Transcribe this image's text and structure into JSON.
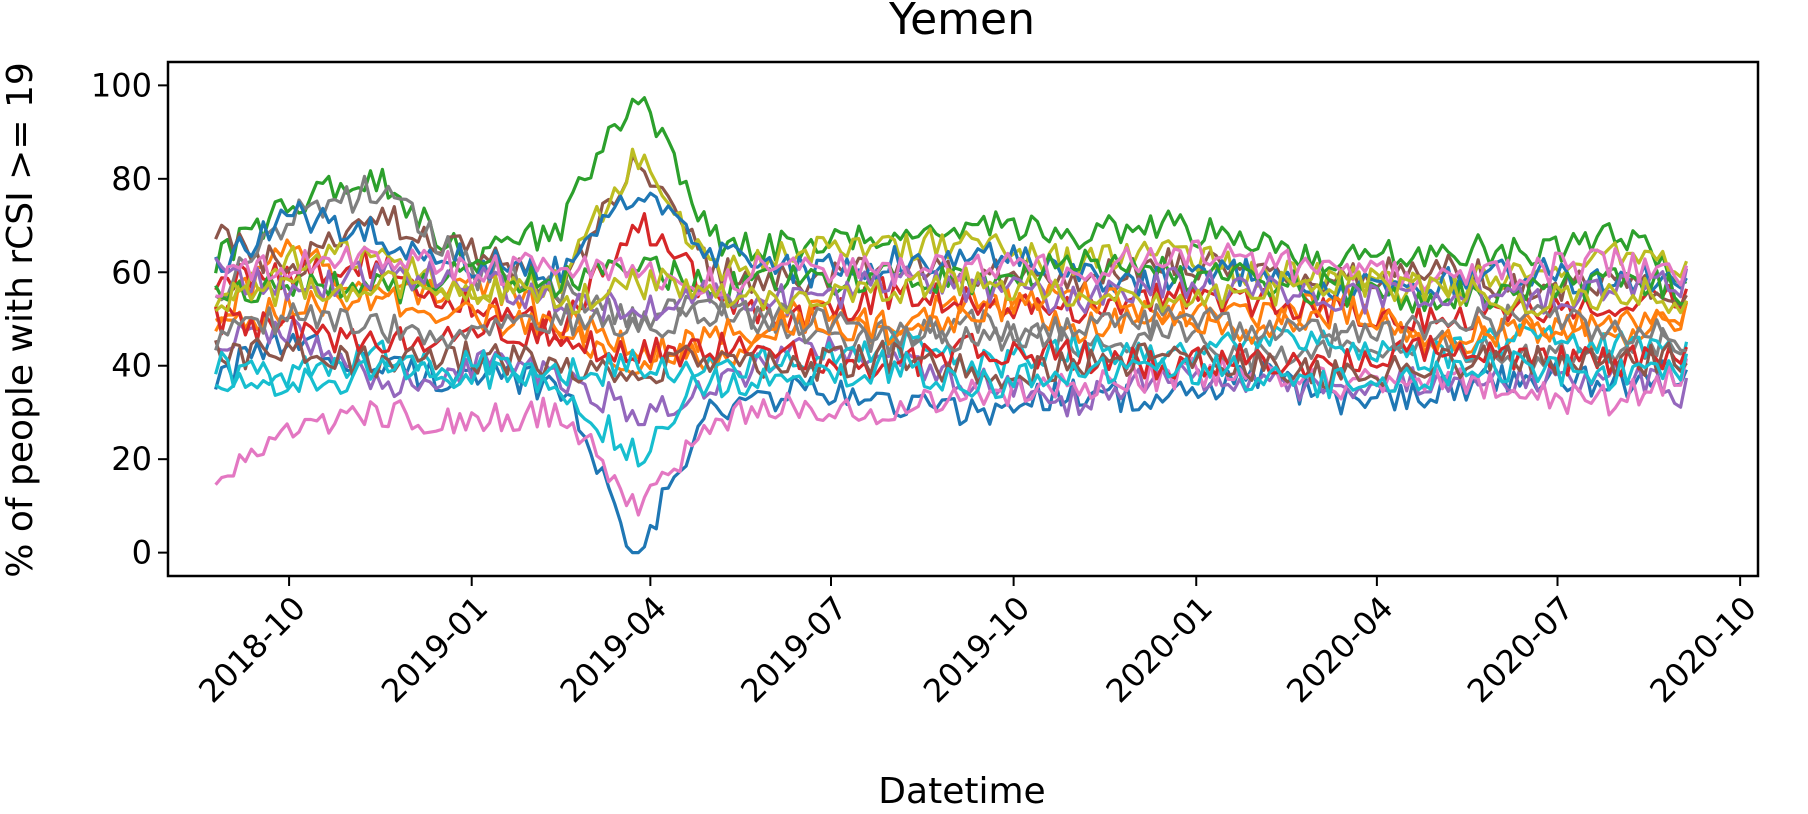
{
  "chart_data": {
    "type": "line",
    "title": "Yemen",
    "xlabel": "Datetime",
    "ylabel": "% of people with rCSI >= 19",
    "x_range": [
      "2018-08-01",
      "2020-10-10"
    ],
    "x_ticks": [
      "2018-10",
      "2019-01",
      "2019-04",
      "2019-07",
      "2019-10",
      "2020-01",
      "2020-04",
      "2020-07",
      "2020-10"
    ],
    "ylim": [
      -5,
      105
    ],
    "y_ticks": [
      0,
      20,
      40,
      60,
      80,
      100
    ],
    "grid": false,
    "legend": "none",
    "colors": [
      "#1f77b4",
      "#ff7f0e",
      "#2ca02c",
      "#d62728",
      "#9467bd",
      "#8c564b",
      "#e377c2",
      "#7f7f7f",
      "#bcbd22",
      "#17becf"
    ],
    "series": [
      {
        "x": [
          "2018-08-25",
          "2018-10-01",
          "2018-11-15",
          "2019-01-01",
          "2019-02-15",
          "2019-03-25",
          "2019-05-01",
          "2019-06-15",
          "2019-08-01",
          "2019-09-15",
          "2019-11-01",
          "2019-12-15",
          "2020-02-01",
          "2020-03-15",
          "2020-05-01",
          "2020-06-15",
          "2020-08-01",
          "2020-09-05"
        ],
        "values": [
          38,
          45,
          40,
          37,
          36,
          0,
          30,
          35,
          32,
          30,
          35,
          32,
          38,
          32,
          35,
          38,
          36,
          40
        ]
      },
      {
        "x": [
          "2018-08-25",
          "2018-10-01",
          "2018-11-15",
          "2019-01-01",
          "2019-02-15",
          "2019-03-25",
          "2019-05-01",
          "2019-06-15",
          "2019-08-01",
          "2019-09-15",
          "2019-11-01",
          "2019-12-15",
          "2020-02-01",
          "2020-03-15",
          "2020-05-01",
          "2020-06-15",
          "2020-08-01",
          "2020-09-05"
        ],
        "values": [
          50,
          65,
          55,
          58,
          50,
          45,
          40,
          52,
          48,
          56,
          48,
          52,
          50,
          55,
          45,
          48,
          46,
          52
        ]
      },
      {
        "x": [
          "2018-08-25",
          "2018-10-01",
          "2018-11-15",
          "2019-01-01",
          "2019-02-15",
          "2019-03-25",
          "2019-05-01",
          "2019-06-15",
          "2019-08-01",
          "2019-09-15",
          "2019-11-01",
          "2019-12-15",
          "2020-02-01",
          "2020-03-15",
          "2020-05-01",
          "2020-06-15",
          "2020-08-01",
          "2020-09-05"
        ],
        "values": [
          62,
          75,
          80,
          62,
          70,
          100,
          67,
          65,
          68,
          70,
          68,
          70,
          66,
          62,
          65,
          64,
          68,
          60
        ]
      },
      {
        "x": [
          "2018-08-25",
          "2018-10-01",
          "2018-11-15",
          "2019-01-01",
          "2019-02-15",
          "2019-03-25",
          "2019-05-01",
          "2019-06-15",
          "2019-08-01",
          "2019-09-15",
          "2019-11-01",
          "2019-12-15",
          "2020-02-01",
          "2020-03-15",
          "2020-05-01",
          "2020-06-15",
          "2020-08-01",
          "2020-09-05"
        ],
        "values": [
          58,
          60,
          62,
          52,
          48,
          72,
          55,
          50,
          56,
          54,
          52,
          55,
          54,
          52,
          50,
          52,
          54,
          56
        ]
      },
      {
        "x": [
          "2018-08-25",
          "2018-10-01",
          "2018-11-15",
          "2019-01-01",
          "2019-02-15",
          "2019-03-25",
          "2019-05-01",
          "2019-06-15",
          "2019-08-01",
          "2019-09-15",
          "2019-11-01",
          "2019-12-15",
          "2020-02-01",
          "2020-03-15",
          "2020-05-01",
          "2020-06-15",
          "2020-08-01",
          "2020-09-05"
        ],
        "values": [
          45,
          48,
          35,
          40,
          38,
          30,
          35,
          45,
          40,
          36,
          32,
          38,
          36,
          34,
          38,
          36,
          38,
          34
        ]
      },
      {
        "x": [
          "2018-08-25",
          "2018-10-01",
          "2018-11-15",
          "2019-01-01",
          "2019-02-15",
          "2019-03-25",
          "2019-05-01",
          "2019-06-15",
          "2019-08-01",
          "2019-09-15",
          "2019-11-01",
          "2019-12-15",
          "2020-02-01",
          "2020-03-15",
          "2020-05-01",
          "2020-06-15",
          "2020-08-01",
          "2020-09-05"
        ],
        "values": [
          68,
          60,
          72,
          64,
          56,
          86,
          60,
          58,
          62,
          60,
          58,
          62,
          60,
          58,
          62,
          56,
          58,
          56
        ]
      },
      {
        "x": [
          "2018-08-25",
          "2018-10-01",
          "2018-11-15",
          "2019-01-01",
          "2019-02-15",
          "2019-03-25",
          "2019-05-01",
          "2019-06-15",
          "2019-08-01",
          "2019-09-15",
          "2019-11-01",
          "2019-12-15",
          "2020-02-01",
          "2020-03-15",
          "2020-05-01",
          "2020-06-15",
          "2020-08-01",
          "2020-09-05"
        ],
        "values": [
          15,
          25,
          30,
          28,
          30,
          10,
          28,
          32,
          30,
          34,
          36,
          38,
          40,
          36,
          38,
          34,
          32,
          40
        ]
      },
      {
        "x": [
          "2018-08-25",
          "2018-10-01",
          "2018-11-15",
          "2019-01-01",
          "2019-02-15",
          "2019-03-25",
          "2019-05-01",
          "2019-06-15",
          "2019-08-01",
          "2019-09-15",
          "2019-11-01",
          "2019-12-15",
          "2020-02-01",
          "2020-03-15",
          "2020-05-01",
          "2020-06-15",
          "2020-08-01",
          "2020-09-05"
        ],
        "values": [
          55,
          72,
          78,
          60,
          56,
          50,
          52,
          48,
          46,
          50,
          44,
          48,
          42,
          46,
          44,
          42,
          44,
          46
        ]
      },
      {
        "x": [
          "2018-08-25",
          "2018-10-01",
          "2018-11-15",
          "2019-01-01",
          "2019-02-15",
          "2019-03-25",
          "2019-05-01",
          "2019-06-15",
          "2019-08-01",
          "2019-09-15",
          "2019-11-01",
          "2019-12-15",
          "2020-02-01",
          "2020-03-15",
          "2020-05-01",
          "2020-06-15",
          "2020-08-01",
          "2020-09-05"
        ],
        "values": [
          52,
          62,
          64,
          55,
          58,
          85,
          60,
          64,
          66,
          66,
          62,
          64,
          60,
          58,
          56,
          60,
          64,
          62
        ]
      },
      {
        "x": [
          "2018-08-25",
          "2018-10-01",
          "2018-11-15",
          "2019-01-01",
          "2019-02-15",
          "2019-03-25",
          "2019-05-01",
          "2019-06-15",
          "2019-08-01",
          "2019-09-15",
          "2019-11-01",
          "2019-12-15",
          "2020-02-01",
          "2020-03-15",
          "2020-05-01",
          "2020-06-15",
          "2020-08-01",
          "2020-09-05"
        ],
        "values": [
          35,
          38,
          42,
          38,
          36,
          20,
          40,
          42,
          45,
          40,
          44,
          42,
          46,
          44,
          42,
          46,
          44,
          42
        ]
      },
      {
        "x": [
          "2018-08-25",
          "2018-10-01",
          "2018-11-15",
          "2019-01-01",
          "2019-02-15",
          "2019-03-25",
          "2019-05-01",
          "2019-06-15",
          "2019-08-01",
          "2019-09-15",
          "2019-11-01",
          "2019-12-15",
          "2020-02-01",
          "2020-03-15",
          "2020-05-01",
          "2020-06-15",
          "2020-08-01",
          "2020-09-05"
        ],
        "values": [
          62,
          72,
          68,
          62,
          60,
          78,
          64,
          60,
          62,
          64,
          60,
          58,
          60,
          56,
          58,
          60,
          58,
          60
        ]
      },
      {
        "x": [
          "2018-08-25",
          "2018-10-01",
          "2018-11-15",
          "2019-01-01",
          "2019-02-15",
          "2019-03-25",
          "2019-05-01",
          "2019-06-15",
          "2019-08-01",
          "2019-09-15",
          "2019-11-01",
          "2019-12-15",
          "2020-02-01",
          "2020-03-15",
          "2020-05-01",
          "2020-06-15",
          "2020-08-01",
          "2020-09-05"
        ],
        "values": [
          48,
          52,
          54,
          50,
          48,
          40,
          46,
          50,
          48,
          52,
          56,
          50,
          48,
          52,
          46,
          48,
          50,
          52
        ]
      },
      {
        "x": [
          "2018-08-25",
          "2018-10-01",
          "2018-11-15",
          "2019-01-01",
          "2019-02-15",
          "2019-03-25",
          "2019-05-01",
          "2019-06-15",
          "2019-08-01",
          "2019-09-15",
          "2019-11-01",
          "2019-12-15",
          "2020-02-01",
          "2020-03-15",
          "2020-05-01",
          "2020-06-15",
          "2020-08-01",
          "2020-09-05"
        ],
        "values": [
          55,
          58,
          56,
          60,
          58,
          62,
          56,
          58,
          60,
          58,
          62,
          60,
          58,
          56,
          54,
          56,
          58,
          56
        ]
      },
      {
        "x": [
          "2018-08-25",
          "2018-10-01",
          "2018-11-15",
          "2019-01-01",
          "2019-02-15",
          "2019-03-25",
          "2019-05-01",
          "2019-06-15",
          "2019-08-01",
          "2019-09-15",
          "2019-11-01",
          "2019-12-15",
          "2020-02-01",
          "2020-03-15",
          "2020-05-01",
          "2020-06-15",
          "2020-08-01",
          "2020-09-05"
        ],
        "values": [
          50,
          48,
          45,
          48,
          46,
          42,
          44,
          42,
          40,
          44,
          42,
          40,
          42,
          40,
          44,
          42,
          40,
          44
        ]
      },
      {
        "x": [
          "2018-08-25",
          "2018-10-01",
          "2018-11-15",
          "2019-01-01",
          "2019-02-15",
          "2019-03-25",
          "2019-05-01",
          "2019-06-15",
          "2019-08-01",
          "2019-09-15",
          "2019-11-01",
          "2019-12-15",
          "2020-02-01",
          "2020-03-15",
          "2020-05-01",
          "2020-06-15",
          "2020-08-01",
          "2020-09-05"
        ],
        "values": [
          60,
          56,
          60,
          58,
          54,
          52,
          56,
          54,
          58,
          56,
          54,
          58,
          56,
          54,
          56,
          54,
          56,
          58
        ]
      },
      {
        "x": [
          "2018-08-25",
          "2018-10-01",
          "2018-11-15",
          "2019-01-01",
          "2019-02-15",
          "2019-03-25",
          "2019-05-01",
          "2019-06-15",
          "2019-08-01",
          "2019-09-15",
          "2019-11-01",
          "2019-12-15",
          "2020-02-01",
          "2020-03-15",
          "2020-05-01",
          "2020-06-15",
          "2020-08-01",
          "2020-09-05"
        ],
        "values": [
          42,
          44,
          40,
          42,
          40,
          38,
          42,
          40,
          42,
          38,
          40,
          42,
          40,
          38,
          40,
          42,
          40,
          42
        ]
      },
      {
        "x": [
          "2018-08-25",
          "2018-10-01",
          "2018-11-15",
          "2019-01-01",
          "2019-02-15",
          "2019-03-25",
          "2019-05-01",
          "2019-06-15",
          "2019-08-01",
          "2019-09-15",
          "2019-11-01",
          "2019-12-15",
          "2020-02-01",
          "2020-03-15",
          "2020-05-01",
          "2020-06-15",
          "2020-08-01",
          "2020-09-05"
        ],
        "values": [
          58,
          62,
          64,
          60,
          62,
          60,
          58,
          62,
          60,
          62,
          60,
          64,
          62,
          60,
          58,
          60,
          62,
          60
        ]
      },
      {
        "x": [
          "2018-08-25",
          "2018-10-01",
          "2018-11-15",
          "2019-01-01",
          "2019-02-15",
          "2019-03-25",
          "2019-05-01",
          "2019-06-15",
          "2019-08-01",
          "2019-09-15",
          "2019-11-01",
          "2019-12-15",
          "2020-02-01",
          "2020-03-15",
          "2020-05-01",
          "2020-06-15",
          "2020-08-01",
          "2020-09-05"
        ],
        "values": [
          46,
          50,
          48,
          46,
          50,
          48,
          52,
          50,
          48,
          46,
          48,
          50,
          48,
          46,
          48,
          50,
          48,
          46
        ]
      },
      {
        "x": [
          "2018-08-25",
          "2018-10-01",
          "2018-11-15",
          "2019-01-01",
          "2019-02-15",
          "2019-03-25",
          "2019-05-01",
          "2019-06-15",
          "2019-08-01",
          "2019-09-15",
          "2019-11-01",
          "2019-12-15",
          "2020-02-01",
          "2020-03-15",
          "2020-05-01",
          "2020-06-15",
          "2020-08-01",
          "2020-09-05"
        ],
        "values": [
          54,
          56,
          58,
          56,
          54,
          58,
          56,
          54,
          56,
          58,
          56,
          54,
          56,
          58,
          56,
          54,
          56,
          54
        ]
      },
      {
        "x": [
          "2018-08-25",
          "2018-10-01",
          "2018-11-15",
          "2019-01-01",
          "2019-02-15",
          "2019-03-25",
          "2019-05-01",
          "2019-06-15",
          "2019-08-01",
          "2019-09-15",
          "2019-11-01",
          "2019-12-15",
          "2020-02-01",
          "2020-03-15",
          "2020-05-01",
          "2020-06-15",
          "2020-08-01",
          "2020-09-05"
        ],
        "values": [
          40,
          36,
          38,
          40,
          38,
          40,
          36,
          38,
          40,
          36,
          38,
          40,
          38,
          36,
          38,
          40,
          38,
          40
        ]
      }
    ]
  }
}
